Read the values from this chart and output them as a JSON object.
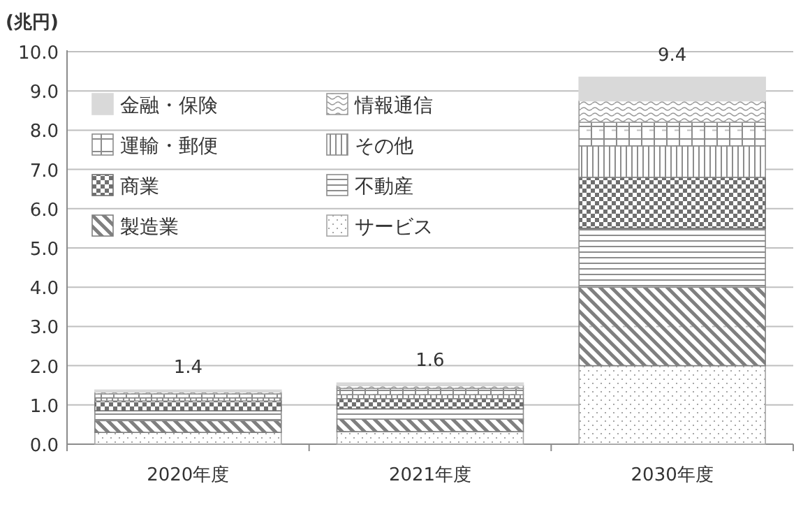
{
  "chart_data": {
    "type": "bar",
    "stacked": true,
    "ylabel": "(兆円)",
    "categories": [
      "2020年度",
      "2021年度",
      "2030年度"
    ],
    "series": [
      {
        "name": "サービス",
        "color": "#a6a6a6",
        "values": [
          0.3,
          0.32,
          2.0
        ]
      },
      {
        "name": "製造業",
        "color": "#7f7f7f",
        "values": [
          0.3,
          0.32,
          2.0
        ]
      },
      {
        "name": "不動産",
        "color": "#8c8c8c",
        "values": [
          0.25,
          0.26,
          1.5
        ]
      },
      {
        "name": "商業",
        "color": "#6f6f6f",
        "values": [
          0.25,
          0.26,
          1.3
        ]
      },
      {
        "name": "その他",
        "color": "#8c8c8c",
        "values": [
          0.08,
          0.1,
          0.8
        ]
      },
      {
        "name": "運輸・郵便",
        "color": "#8c8c8c",
        "values": [
          0.1,
          0.16,
          0.6
        ]
      },
      {
        "name": "情報通信",
        "color": "#999999",
        "values": [
          0.05,
          0.08,
          0.55
        ]
      },
      {
        "name": "金融・保険",
        "color": "#d9d9d9",
        "values": [
          0.05,
          0.06,
          0.6
        ]
      }
    ],
    "totals": [
      "1.4",
      "1.6",
      "9.4"
    ],
    "ylim": [
      0,
      10
    ],
    "yticks": [
      {
        "value": 0,
        "label": "0.0"
      },
      {
        "value": 1,
        "label": "1.0"
      },
      {
        "value": 2,
        "label": "2.0"
      },
      {
        "value": 3,
        "label": "3.0"
      },
      {
        "value": 4,
        "label": "4.0"
      },
      {
        "value": 5,
        "label": "5.0"
      },
      {
        "value": 6,
        "label": "6.0"
      },
      {
        "value": 7,
        "label": "7.0"
      },
      {
        "value": 8,
        "label": "8.0"
      },
      {
        "value": 9,
        "label": "9.0"
      },
      {
        "value": 10,
        "label": "10.0"
      }
    ],
    "grid": "y",
    "legend": "top left"
  }
}
